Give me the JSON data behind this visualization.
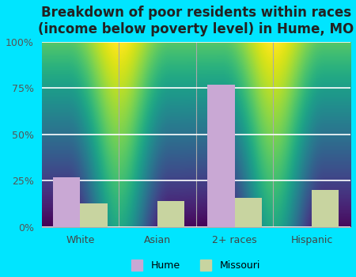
{
  "title": "Breakdown of poor residents within races\n(income below poverty level) in Hume, MO",
  "categories": [
    "White",
    "Asian",
    "2+ races",
    "Hispanic"
  ],
  "hume_values": [
    27,
    0,
    77,
    0
  ],
  "missouri_values": [
    13,
    14,
    16,
    20
  ],
  "hume_color": "#c9a8d4",
  "missouri_color": "#c8d4a0",
  "bg_top_color": "#f0faf0",
  "bg_bottom_color": "#d4edda",
  "outer_background": "#00e5ff",
  "ylim": [
    0,
    100
  ],
  "yticks": [
    0,
    25,
    50,
    75,
    100
  ],
  "ytick_labels": [
    "0%",
    "25%",
    "50%",
    "75%",
    "100%"
  ],
  "title_fontsize": 12,
  "legend_labels": [
    "Hume",
    "Missouri"
  ],
  "bar_width": 0.35
}
